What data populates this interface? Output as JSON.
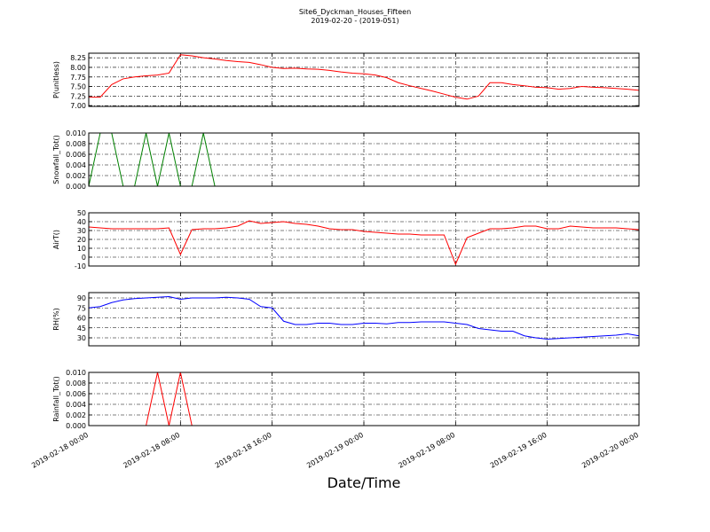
{
  "figure": {
    "title": "Site6_Dyckman_Houses_Fifteen",
    "subtitle": "2019-02-20 - (2019-051)",
    "xlabel": "Date/Time"
  },
  "chart_data": [
    {
      "type": "line",
      "ylabel": "P(unitless)",
      "x": [
        "2019-02-18 00:00",
        "2019-02-18 01:00",
        "2019-02-18 02:00",
        "2019-02-18 03:00",
        "2019-02-18 04:00",
        "2019-02-18 05:00",
        "2019-02-18 06:00",
        "2019-02-18 07:00",
        "2019-02-18 08:00",
        "2019-02-18 09:00",
        "2019-02-18 10:00",
        "2019-02-18 11:00",
        "2019-02-18 12:00",
        "2019-02-18 13:00",
        "2019-02-18 14:00",
        "2019-02-18 15:00",
        "2019-02-18 16:00",
        "2019-02-18 17:00",
        "2019-02-18 18:00",
        "2019-02-18 19:00",
        "2019-02-18 20:00",
        "2019-02-18 21:00",
        "2019-02-18 22:00",
        "2019-02-18 23:00",
        "2019-02-19 00:00",
        "2019-02-19 01:00",
        "2019-02-19 02:00",
        "2019-02-19 03:00",
        "2019-02-19 04:00",
        "2019-02-19 05:00",
        "2019-02-19 06:00",
        "2019-02-19 07:00",
        "2019-02-19 08:00",
        "2019-02-19 09:00",
        "2019-02-19 10:00",
        "2019-02-19 11:00",
        "2019-02-19 12:00",
        "2019-02-19 13:00",
        "2019-02-19 14:00",
        "2019-02-19 15:00",
        "2019-02-19 16:00",
        "2019-02-19 17:00",
        "2019-02-19 18:00",
        "2019-02-19 19:00",
        "2019-02-19 20:00",
        "2019-02-19 21:00",
        "2019-02-19 22:00",
        "2019-02-19 23:00",
        "2019-02-20 00:00"
      ],
      "series": [
        {
          "color": "#ff0000",
          "values": [
            7.22,
            7.22,
            7.55,
            7.7,
            7.75,
            7.78,
            7.8,
            7.85,
            8.33,
            8.3,
            8.25,
            8.22,
            8.18,
            8.15,
            8.13,
            8.07,
            8.0,
            7.97,
            7.98,
            7.96,
            7.95,
            7.92,
            7.88,
            7.85,
            7.83,
            7.8,
            7.73,
            7.6,
            7.52,
            7.45,
            7.38,
            7.3,
            7.22,
            7.17,
            7.25,
            7.6,
            7.6,
            7.55,
            7.52,
            7.48,
            7.47,
            7.43,
            7.45,
            7.5,
            7.48,
            7.47,
            7.45,
            7.43,
            7.4
          ]
        }
      ],
      "xlim": [
        "2019-02-18 00:00",
        "2019-02-20 00:00"
      ],
      "xticks": [
        "2019-02-18 00:00",
        "2019-02-18 08:00",
        "2019-02-18 16:00",
        "2019-02-19 00:00",
        "2019-02-19 08:00",
        "2019-02-19 16:00",
        "2019-02-20 00:00"
      ],
      "ylim": [
        6.98,
        8.37
      ],
      "yticks": [
        {
          "value": 7,
          "label": "7.00"
        },
        7.25,
        {
          "value": 7.5,
          "label": "7.50"
        },
        7.75,
        {
          "value": 8,
          "label": "8.00"
        },
        8.25
      ],
      "grid": true
    },
    {
      "type": "line",
      "ylabel": "Snowfall_Tot()",
      "x": [
        "2019-02-18 00:00",
        "2019-02-18 01:00",
        "2019-02-18 02:00",
        "2019-02-18 03:00",
        "2019-02-18 04:00",
        "2019-02-18 05:00",
        "2019-02-18 06:00",
        "2019-02-18 07:00",
        "2019-02-18 08:00",
        "2019-02-18 09:00",
        "2019-02-18 10:00",
        "2019-02-18 11:00",
        "2019-02-18 12:00",
        "2019-02-18 13:00",
        "2019-02-18 14:00",
        "2019-02-18 15:00",
        "2019-02-18 16:00",
        "2019-02-18 17:00",
        "2019-02-18 18:00",
        "2019-02-18 19:00",
        "2019-02-18 20:00",
        "2019-02-18 21:00",
        "2019-02-18 22:00",
        "2019-02-18 23:00",
        "2019-02-19 00:00",
        "2019-02-19 01:00",
        "2019-02-19 02:00",
        "2019-02-19 03:00",
        "2019-02-19 04:00",
        "2019-02-19 05:00",
        "2019-02-19 06:00",
        "2019-02-19 07:00",
        "2019-02-19 08:00",
        "2019-02-19 09:00",
        "2019-02-19 10:00",
        "2019-02-19 11:00",
        "2019-02-19 12:00",
        "2019-02-19 13:00",
        "2019-02-19 14:00",
        "2019-02-19 15:00",
        "2019-02-19 16:00",
        "2019-02-19 17:00",
        "2019-02-19 18:00",
        "2019-02-19 19:00",
        "2019-02-19 20:00",
        "2019-02-19 21:00",
        "2019-02-19 22:00",
        "2019-02-19 23:00",
        "2019-02-20 00:00"
      ],
      "series": [
        {
          "color": "#008000",
          "values": [
            0,
            0.01,
            0.01,
            0,
            0,
            0.01,
            0,
            0.01,
            0,
            0,
            0.01,
            0,
            0,
            0,
            0,
            0,
            0,
            0,
            0,
            0,
            0,
            0,
            0,
            0,
            0,
            0,
            0,
            0,
            0,
            0,
            0,
            0,
            0,
            0,
            0,
            0,
            0,
            0,
            0,
            0,
            0,
            0,
            0,
            0,
            0,
            0,
            0,
            0,
            0
          ]
        }
      ],
      "xlim": [
        "2019-02-18 00:00",
        "2019-02-20 00:00"
      ],
      "xticks": [
        "2019-02-18 00:00",
        "2019-02-18 08:00",
        "2019-02-18 16:00",
        "2019-02-19 00:00",
        "2019-02-19 08:00",
        "2019-02-19 16:00",
        "2019-02-20 00:00"
      ],
      "ylim": [
        0,
        0.01
      ],
      "yticks": [
        {
          "value": 0,
          "label": "0.000"
        },
        {
          "value": 0.002,
          "label": "0.002"
        },
        {
          "value": 0.004,
          "label": "0.004"
        },
        {
          "value": 0.006,
          "label": "0.006"
        },
        {
          "value": 0.008,
          "label": "0.008"
        },
        {
          "value": 0.01,
          "label": "0.010"
        }
      ],
      "grid": true
    },
    {
      "type": "line",
      "ylabel": "AirT()",
      "x": [
        "2019-02-18 00:00",
        "2019-02-18 01:00",
        "2019-02-18 02:00",
        "2019-02-18 03:00",
        "2019-02-18 04:00",
        "2019-02-18 05:00",
        "2019-02-18 06:00",
        "2019-02-18 07:00",
        "2019-02-18 08:00",
        "2019-02-18 09:00",
        "2019-02-18 10:00",
        "2019-02-18 11:00",
        "2019-02-18 12:00",
        "2019-02-18 13:00",
        "2019-02-18 14:00",
        "2019-02-18 15:00",
        "2019-02-18 16:00",
        "2019-02-18 17:00",
        "2019-02-18 18:00",
        "2019-02-18 19:00",
        "2019-02-18 20:00",
        "2019-02-18 21:00",
        "2019-02-18 22:00",
        "2019-02-18 23:00",
        "2019-02-19 00:00",
        "2019-02-19 01:00",
        "2019-02-19 02:00",
        "2019-02-19 03:00",
        "2019-02-19 04:00",
        "2019-02-19 05:00",
        "2019-02-19 06:00",
        "2019-02-19 07:00",
        "2019-02-19 08:00",
        "2019-02-19 09:00",
        "2019-02-19 10:00",
        "2019-02-19 11:00",
        "2019-02-19 12:00",
        "2019-02-19 13:00",
        "2019-02-19 14:00",
        "2019-02-19 15:00",
        "2019-02-19 16:00",
        "2019-02-19 17:00",
        "2019-02-19 18:00",
        "2019-02-19 19:00",
        "2019-02-19 20:00",
        "2019-02-19 21:00",
        "2019-02-19 22:00",
        "2019-02-19 23:00",
        "2019-02-20 00:00"
      ],
      "series": [
        {
          "color": "#ff0000",
          "values": [
            34,
            33,
            32,
            32,
            32,
            32,
            32,
            33,
            3,
            31,
            32,
            32,
            33,
            35,
            41,
            38,
            39,
            40,
            38,
            37,
            35,
            32,
            31,
            31,
            29,
            28,
            27,
            26,
            26,
            25,
            25,
            25,
            -8,
            22,
            27,
            32,
            32,
            33,
            35,
            35,
            32,
            32,
            35,
            34,
            33,
            33,
            33,
            32,
            31
          ]
        }
      ],
      "xlim": [
        "2019-02-18 00:00",
        "2019-02-20 00:00"
      ],
      "xticks": [
        "2019-02-18 00:00",
        "2019-02-18 08:00",
        "2019-02-18 16:00",
        "2019-02-19 00:00",
        "2019-02-19 08:00",
        "2019-02-19 16:00",
        "2019-02-20 00:00"
      ],
      "ylim": [
        -10,
        50
      ],
      "yticks": [
        -10,
        0,
        10,
        20,
        30,
        40,
        50
      ],
      "grid": true
    },
    {
      "type": "line",
      "ylabel": "RH(%)",
      "x": [
        "2019-02-18 00:00",
        "2019-02-18 01:00",
        "2019-02-18 02:00",
        "2019-02-18 03:00",
        "2019-02-18 04:00",
        "2019-02-18 05:00",
        "2019-02-18 06:00",
        "2019-02-18 07:00",
        "2019-02-18 08:00",
        "2019-02-18 09:00",
        "2019-02-18 10:00",
        "2019-02-18 11:00",
        "2019-02-18 12:00",
        "2019-02-18 13:00",
        "2019-02-18 14:00",
        "2019-02-18 15:00",
        "2019-02-18 16:00",
        "2019-02-18 17:00",
        "2019-02-18 18:00",
        "2019-02-18 19:00",
        "2019-02-18 20:00",
        "2019-02-18 21:00",
        "2019-02-18 22:00",
        "2019-02-18 23:00",
        "2019-02-19 00:00",
        "2019-02-19 01:00",
        "2019-02-19 02:00",
        "2019-02-19 03:00",
        "2019-02-19 04:00",
        "2019-02-19 05:00",
        "2019-02-19 06:00",
        "2019-02-19 07:00",
        "2019-02-19 08:00",
        "2019-02-19 09:00",
        "2019-02-19 10:00",
        "2019-02-19 11:00",
        "2019-02-19 12:00",
        "2019-02-19 13:00",
        "2019-02-19 14:00",
        "2019-02-19 15:00",
        "2019-02-19 16:00",
        "2019-02-19 17:00",
        "2019-02-19 18:00",
        "2019-02-19 19:00",
        "2019-02-19 20:00",
        "2019-02-19 21:00",
        "2019-02-19 22:00",
        "2019-02-19 23:00",
        "2019-02-20 00:00"
      ],
      "series": [
        {
          "color": "#0000ff",
          "values": [
            75,
            77,
            83,
            87,
            89,
            90,
            91,
            92,
            88,
            90,
            90,
            90,
            91,
            90,
            88,
            77,
            75,
            55,
            50,
            50,
            52,
            52,
            50,
            50,
            52,
            52,
            51,
            53,
            53,
            54,
            54,
            54,
            52,
            50,
            44,
            42,
            40,
            40,
            33,
            30,
            28,
            29,
            30,
            31,
            32,
            33,
            34,
            36,
            33
          ]
        }
      ],
      "xlim": [
        "2019-02-18 00:00",
        "2019-02-20 00:00"
      ],
      "xticks": [
        "2019-02-18 00:00",
        "2019-02-18 08:00",
        "2019-02-18 16:00",
        "2019-02-19 00:00",
        "2019-02-19 08:00",
        "2019-02-19 16:00",
        "2019-02-20 00:00"
      ],
      "ylim": [
        18,
        98
      ],
      "yticks": [
        30,
        45,
        60,
        75,
        90
      ],
      "grid": true
    },
    {
      "type": "line",
      "ylabel": "Rainfall_Tot()",
      "x": [
        "2019-02-18 00:00",
        "2019-02-18 01:00",
        "2019-02-18 02:00",
        "2019-02-18 03:00",
        "2019-02-18 04:00",
        "2019-02-18 05:00",
        "2019-02-18 06:00",
        "2019-02-18 07:00",
        "2019-02-18 08:00",
        "2019-02-18 09:00",
        "2019-02-18 10:00",
        "2019-02-18 11:00",
        "2019-02-18 12:00",
        "2019-02-18 13:00",
        "2019-02-18 14:00",
        "2019-02-18 15:00",
        "2019-02-18 16:00",
        "2019-02-18 17:00",
        "2019-02-18 18:00",
        "2019-02-18 19:00",
        "2019-02-18 20:00",
        "2019-02-18 21:00",
        "2019-02-18 22:00",
        "2019-02-18 23:00",
        "2019-02-19 00:00",
        "2019-02-19 01:00",
        "2019-02-19 02:00",
        "2019-02-19 03:00",
        "2019-02-19 04:00",
        "2019-02-19 05:00",
        "2019-02-19 06:00",
        "2019-02-19 07:00",
        "2019-02-19 08:00",
        "2019-02-19 09:00",
        "2019-02-19 10:00",
        "2019-02-19 11:00",
        "2019-02-19 12:00",
        "2019-02-19 13:00",
        "2019-02-19 14:00",
        "2019-02-19 15:00",
        "2019-02-19 16:00",
        "2019-02-19 17:00",
        "2019-02-19 18:00",
        "2019-02-19 19:00",
        "2019-02-19 20:00",
        "2019-02-19 21:00",
        "2019-02-19 22:00",
        "2019-02-19 23:00",
        "2019-02-20 00:00"
      ],
      "series": [
        {
          "color": "#ff0000",
          "values": [
            0,
            0,
            0,
            0,
            0,
            0,
            0.01,
            0,
            0.01,
            0,
            0,
            0,
            0,
            0,
            0,
            0,
            0,
            0,
            0,
            0,
            0,
            0,
            0,
            0,
            0,
            0,
            0,
            0,
            0,
            0,
            0,
            0,
            0,
            0,
            0,
            0,
            0,
            0,
            0,
            0,
            0,
            0,
            0,
            0,
            0,
            0,
            0,
            0,
            0
          ]
        }
      ],
      "xlim": [
        "2019-02-18 00:00",
        "2019-02-20 00:00"
      ],
      "xticks": [
        "2019-02-18 00:00",
        "2019-02-18 08:00",
        "2019-02-18 16:00",
        "2019-02-19 00:00",
        "2019-02-19 08:00",
        "2019-02-19 16:00",
        "2019-02-20 00:00"
      ],
      "ylim": [
        0,
        0.01
      ],
      "yticks": [
        {
          "value": 0,
          "label": "0.000"
        },
        {
          "value": 0.002,
          "label": "0.002"
        },
        {
          "value": 0.004,
          "label": "0.004"
        },
        {
          "value": 0.006,
          "label": "0.006"
        },
        {
          "value": 0.008,
          "label": "0.008"
        },
        {
          "value": 0.01,
          "label": "0.010"
        }
      ],
      "grid": true
    }
  ]
}
